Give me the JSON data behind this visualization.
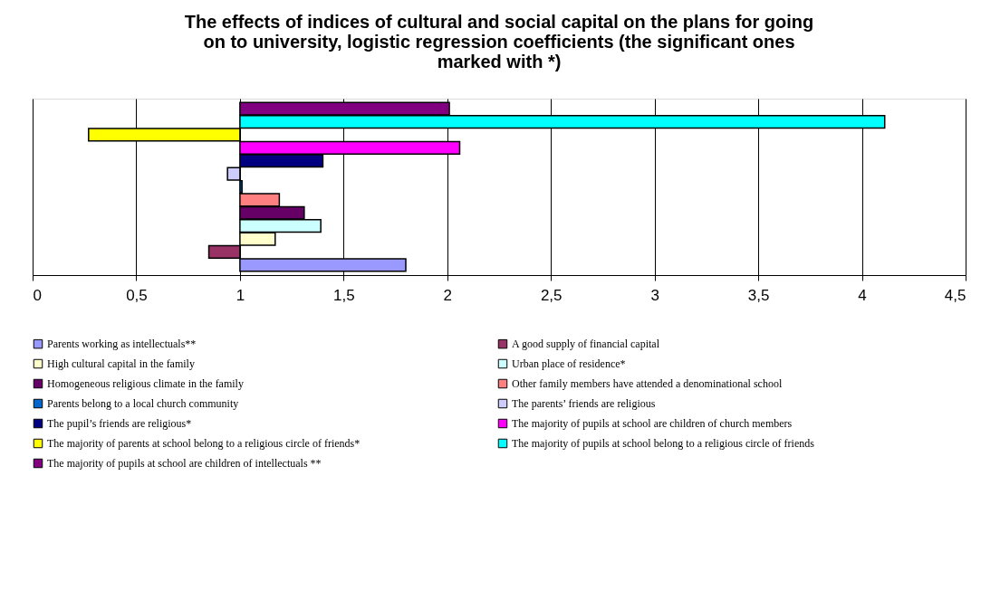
{
  "chart_data": {
    "type": "bar",
    "orientation": "horizontal",
    "title": "The effects of indices of cultural and social capital on the plans for going on to university, logistic regression coefficients (the significant ones marked with *)",
    "categories": [
      null
    ],
    "series": [
      {
        "name": "Parents working as intellectuals**",
        "color": "#9999ff",
        "base": [
          1
        ],
        "values": [
          0.8
        ]
      },
      {
        "name": "A good supply of financial capital",
        "color": "#993366",
        "base": [
          1
        ],
        "values": [
          -0.15
        ]
      },
      {
        "name": "High cultural capital in the family",
        "color": "#ffffcc",
        "base": [
          1
        ],
        "values": [
          0.17
        ]
      },
      {
        "name": "Urban place of residence*",
        "color": "#ccffff",
        "base": [
          1
        ],
        "values": [
          0.39
        ]
      },
      {
        "name": "Homogeneous religious climate in the family",
        "color": "#660066",
        "base": [
          1
        ],
        "values": [
          0.31
        ]
      },
      {
        "name": "Other family members have attended a denominational school",
        "color": "#ff8080",
        "base": [
          1
        ],
        "values": [
          0.19
        ]
      },
      {
        "name": "Parents belong to a local church community",
        "color": "#0066cc",
        "base": [
          1
        ],
        "values": [
          0.01
        ]
      },
      {
        "name": "The parents’ friends are religious",
        "color": "#ccccff",
        "base": [
          1
        ],
        "values": [
          -0.06
        ]
      },
      {
        "name": "The pupil’s friends are religious*",
        "color": "#000080",
        "base": [
          1
        ],
        "values": [
          0.4
        ]
      },
      {
        "name": "The majority of pupils at school are children of church members",
        "color": "#ff00ff",
        "base": [
          1
        ],
        "values": [
          1.06
        ]
      },
      {
        "name": "The majority of parents at school belong to a religious circle of friends*",
        "color": "#ffff00",
        "base": [
          1
        ],
        "values": [
          -0.73
        ]
      },
      {
        "name": "The majority of pupils at school belong to a religious circle of friends",
        "color": "#00ffff",
        "base": [
          1
        ],
        "values": [
          3.11
        ]
      },
      {
        "name": "The majority of pupils at school are children of intellectuals **",
        "color": "#800080",
        "base": [
          1
        ],
        "values": [
          1.01
        ]
      }
    ],
    "xlim": [
      0,
      4.5
    ],
    "xticks": [
      0,
      {
        "value": 0.5,
        "label": "0,5"
      },
      1,
      {
        "value": 1.5,
        "label": "1,5"
      },
      2,
      {
        "value": 2.5,
        "label": "2,5"
      },
      3,
      {
        "value": 3.5,
        "label": "3,5"
      },
      4,
      {
        "value": 4.5,
        "label": "4,5"
      }
    ],
    "grid": "x",
    "legend": "bottom",
    "tick_labels": "x"
  }
}
